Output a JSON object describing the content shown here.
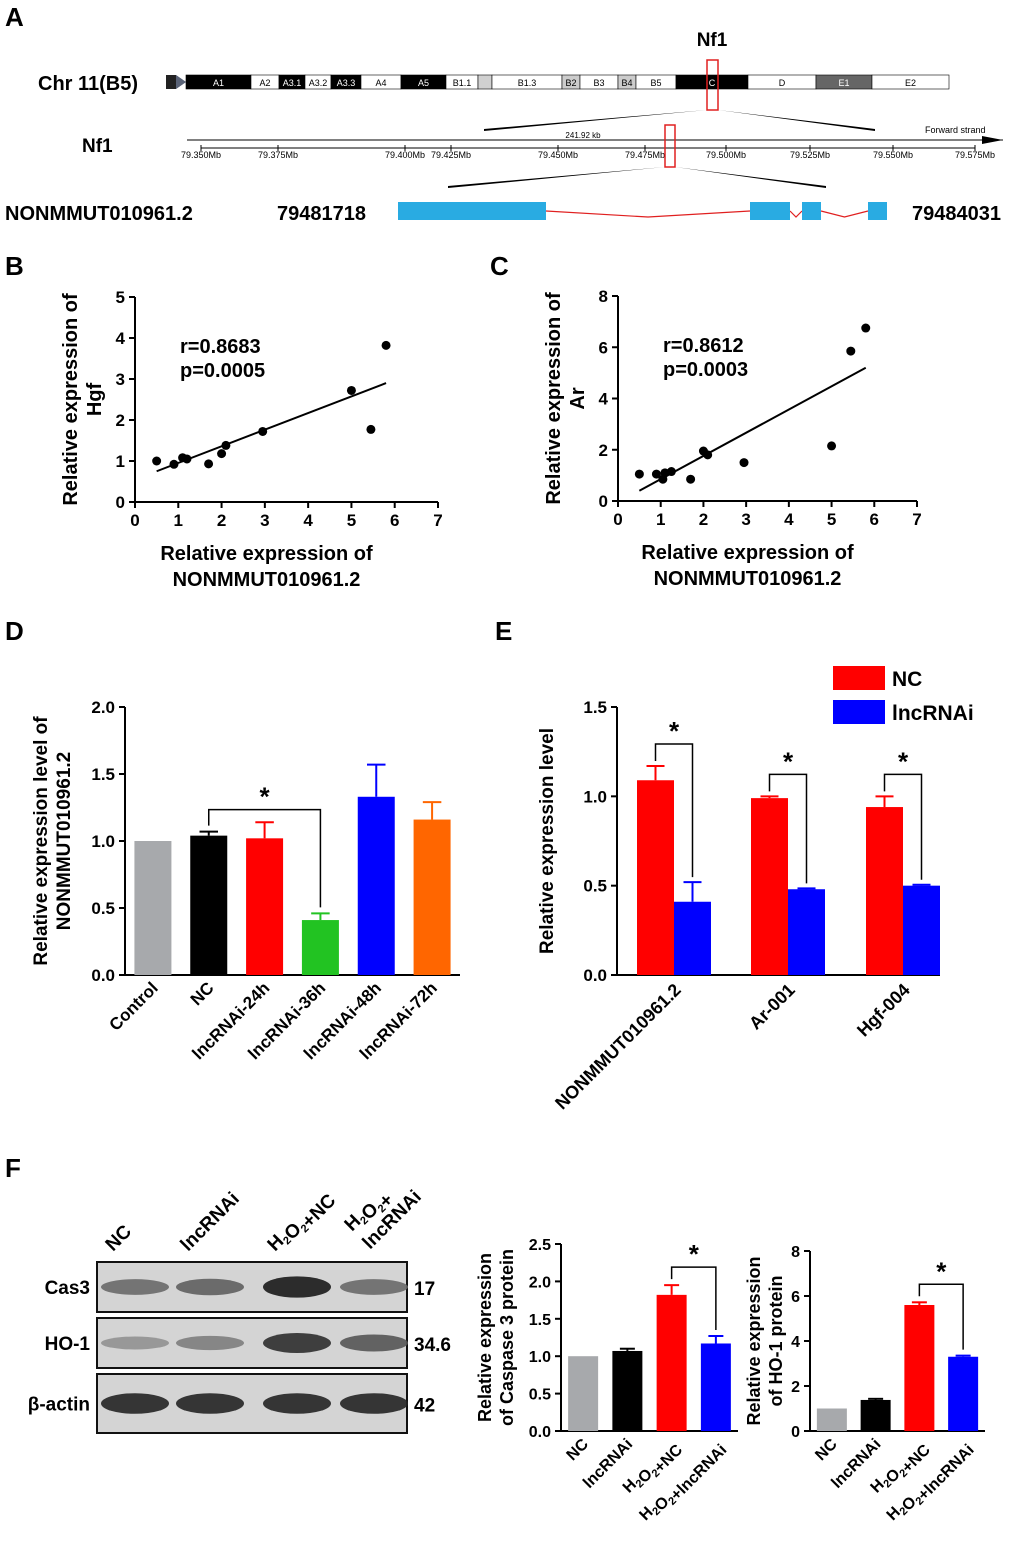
{
  "colors": {
    "gray": "#A7A9AC",
    "black": "#000000",
    "red": "#FF0000",
    "green": "#22C322",
    "blue": "#0000FF",
    "orange": "#FF6600",
    "cyan": "#29ABE2",
    "redline": "#E02020"
  },
  "panel_a": {
    "letter": "A",
    "gene_label": "Nf1",
    "chr_label": "Chr 11(B5)",
    "bands": [
      {
        "name": "A1",
        "color": "#000000",
        "text_color": "#FFFFFF",
        "w": 65
      },
      {
        "name": "A2",
        "color": "#FFFFFF",
        "text_color": "#000000",
        "w": 28
      },
      {
        "name": "A3.1",
        "color": "#000000",
        "text_color": "#FFFFFF",
        "w": 26
      },
      {
        "name": "A3.2",
        "color": "#FFFFFF",
        "text_color": "#000000",
        "w": 26
      },
      {
        "name": "A3.3",
        "color": "#000000",
        "text_color": "#FFFFFF",
        "w": 30
      },
      {
        "name": "A4",
        "color": "#FFFFFF",
        "text_color": "#000000",
        "w": 40
      },
      {
        "name": "A5",
        "color": "#000000",
        "text_color": "#FFFFFF",
        "w": 45
      },
      {
        "name": "B1.1",
        "color": "#FFFFFF",
        "text_color": "#000000",
        "w": 32
      },
      {
        "name": "",
        "color": "#D0D0D0",
        "text_color": "#000000",
        "w": 14
      },
      {
        "name": "B1.3",
        "color": "#FFFFFF",
        "text_color": "#000000",
        "w": 70
      },
      {
        "name": "B2",
        "color": "#CCCCCC",
        "text_color": "#000000",
        "w": 18
      },
      {
        "name": "B3",
        "color": "#FFFFFF",
        "text_color": "#000000",
        "w": 38
      },
      {
        "name": "B4",
        "color": "#CCCCCC",
        "text_color": "#000000",
        "w": 18
      },
      {
        "name": "B5",
        "color": "#FFFFFF",
        "text_color": "#000000",
        "w": 40
      },
      {
        "name": "C",
        "color": "#000000",
        "text_color": "#FFFFFF",
        "w": 72
      },
      {
        "name": "D",
        "color": "#FFFFFF",
        "text_color": "#000000",
        "w": 68
      },
      {
        "name": "E1",
        "color": "#666666",
        "text_color": "#FFFFFF",
        "w": 56
      },
      {
        "name": "E2",
        "color": "#FFFFFF",
        "text_color": "#000000",
        "w": 77
      }
    ],
    "nf1_track_label": "Nf1",
    "span_label": "241.92 kb",
    "strand_label": "Forward strand",
    "ticks": [
      "79.350Mb",
      "79.375Mb",
      "79.400Mb",
      "79.425Mb",
      "79.450Mb",
      "79.475Mb",
      "79.500Mb",
      "79.525Mb",
      "79.550Mb",
      "79.575Mb"
    ],
    "transcript_label": "NONMMUT010961.2",
    "start": "79481718",
    "end": "79484031",
    "exons": [
      [
        0,
        148
      ],
      [
        352,
        392
      ],
      [
        404,
        423
      ],
      [
        470,
        489
      ]
    ]
  },
  "chart_data": [
    {
      "id": "B",
      "type": "scatter",
      "xlabel": "Relative expression of NONMMUT010961.2",
      "ylabel": "Relative expression of Hgf",
      "xlim": [
        0,
        7
      ],
      "ylim": [
        0,
        5
      ],
      "xticks": [
        0,
        1,
        2,
        3,
        4,
        5,
        6,
        7
      ],
      "yticks": [
        0,
        1,
        2,
        3,
        4,
        5
      ],
      "annotation": [
        "r=0.8683",
        "p=0.0005"
      ],
      "points": [
        [
          0.5,
          1.0
        ],
        [
          0.9,
          0.92
        ],
        [
          1.1,
          1.08
        ],
        [
          1.2,
          1.05
        ],
        [
          1.7,
          0.93
        ],
        [
          2.0,
          1.18
        ],
        [
          2.1,
          1.38
        ],
        [
          2.95,
          1.72
        ],
        [
          5.0,
          2.72
        ],
        [
          5.45,
          1.77
        ],
        [
          5.8,
          3.82
        ]
      ],
      "fit": [
        [
          0.5,
          0.75
        ],
        [
          5.8,
          2.9
        ]
      ]
    },
    {
      "id": "C",
      "type": "scatter",
      "xlabel": "Relative expression of NONMMUT010961.2",
      "ylabel": "Relative expression of Ar",
      "xlim": [
        0,
        7
      ],
      "ylim": [
        0,
        8
      ],
      "xticks": [
        0,
        1,
        2,
        3,
        4,
        5,
        6,
        7
      ],
      "yticks": [
        0,
        2,
        4,
        6,
        8
      ],
      "annotation": [
        "r=0.8612",
        "p=0.0003"
      ],
      "points": [
        [
          0.5,
          1.05
        ],
        [
          0.9,
          1.05
        ],
        [
          1.05,
          0.85
        ],
        [
          1.1,
          1.1
        ],
        [
          1.25,
          1.15
        ],
        [
          1.7,
          0.85
        ],
        [
          2.0,
          1.95
        ],
        [
          2.1,
          1.8
        ],
        [
          2.95,
          1.5
        ],
        [
          5.0,
          2.15
        ],
        [
          5.45,
          5.85
        ],
        [
          5.8,
          6.75
        ]
      ],
      "fit": [
        [
          0.5,
          0.4
        ],
        [
          5.8,
          5.2
        ]
      ]
    },
    {
      "id": "D",
      "type": "bar",
      "ylabel": "Relative expression level of NONMMUT010961.2",
      "ylim": [
        0,
        2.0
      ],
      "yticks": [
        "0.0",
        "0.5",
        "1.0",
        "1.5",
        "2.0"
      ],
      "categories": [
        "Control",
        "NC",
        "lncRNAi-24h",
        "lncRNAi-36h",
        "lncRNAi-48h",
        "lncRNAi-72h"
      ],
      "values": [
        1.0,
        1.04,
        1.02,
        0.41,
        1.33,
        1.16
      ],
      "errors": [
        0.0,
        0.03,
        0.12,
        0.05,
        0.24,
        0.13
      ],
      "colors": [
        "#A7A9AC",
        "#000000",
        "#FF0000",
        "#22C322",
        "#0000FF",
        "#FF6600"
      ],
      "significance": {
        "from": 1,
        "to": 3,
        "label": "*"
      }
    },
    {
      "id": "E",
      "type": "bar",
      "ylabel": "Relative expression level",
      "ylim": [
        0,
        1.5
      ],
      "yticks": [
        "0.0",
        "0.5",
        "1.0",
        "1.5"
      ],
      "categories": [
        "NONMMUT010961.2",
        "Ar-001",
        "Hgf-004"
      ],
      "series": [
        {
          "name": "NC",
          "color": "#FF0000",
          "values": [
            1.09,
            0.99,
            0.94
          ],
          "errors": [
            0.08,
            0.01,
            0.06
          ]
        },
        {
          "name": "lncRNAi",
          "color": "#0000FF",
          "values": [
            0.41,
            0.48,
            0.5
          ],
          "errors": [
            0.11,
            0.005,
            0.005
          ]
        }
      ],
      "significance_label": "*"
    },
    {
      "id": "F1",
      "type": "bar",
      "ylabel": "Relative expression of Caspase 3 protein",
      "ylim": [
        0,
        2.5
      ],
      "yticks": [
        "0.0",
        "0.5",
        "1.0",
        "1.5",
        "2.0",
        "2.5"
      ],
      "categories": [
        "NC",
        "lncRNAi",
        "H₂O₂+NC",
        "H₂O₂+lncRNAi"
      ],
      "values": [
        1.0,
        1.07,
        1.82,
        1.17
      ],
      "errors": [
        0.0,
        0.03,
        0.13,
        0.1
      ],
      "colors": [
        "#A7A9AC",
        "#000000",
        "#FF0000",
        "#0000FF"
      ],
      "significance": {
        "from": 2,
        "to": 3,
        "label": "*"
      }
    },
    {
      "id": "F2",
      "type": "bar",
      "ylabel": "Relative expression of HO-1 protein",
      "ylim": [
        0,
        8
      ],
      "yticks": [
        "0",
        "2",
        "4",
        "6",
        "8"
      ],
      "categories": [
        "NC",
        "lncRNAi",
        "H₂O₂+NC",
        "H₂O₂+lncRNAi"
      ],
      "values": [
        1.0,
        1.38,
        5.6,
        3.3
      ],
      "errors": [
        0.0,
        0.05,
        0.12,
        0.05
      ],
      "colors": [
        "#A7A9AC",
        "#000000",
        "#FF0000",
        "#0000FF"
      ],
      "significance": {
        "from": 2,
        "to": 3,
        "label": "*"
      }
    }
  ],
  "labels": {
    "B": "B",
    "C": "C",
    "D": "D",
    "E": "E",
    "F": "F"
  },
  "western": {
    "lanes": [
      "NC",
      "lncRNAi",
      "H₂O₂+NC",
      "H₂O₂+ lncRNAi"
    ],
    "rows": [
      {
        "name": "Cas3",
        "kda": "17",
        "intensity": [
          0.55,
          0.6,
          0.95,
          0.55
        ]
      },
      {
        "name": "HO-1",
        "kda": "34.6",
        "intensity": [
          0.35,
          0.45,
          0.85,
          0.65
        ]
      },
      {
        "name": "β-actin",
        "kda": "42",
        "intensity": [
          0.9,
          0.9,
          0.9,
          0.9
        ]
      }
    ]
  }
}
